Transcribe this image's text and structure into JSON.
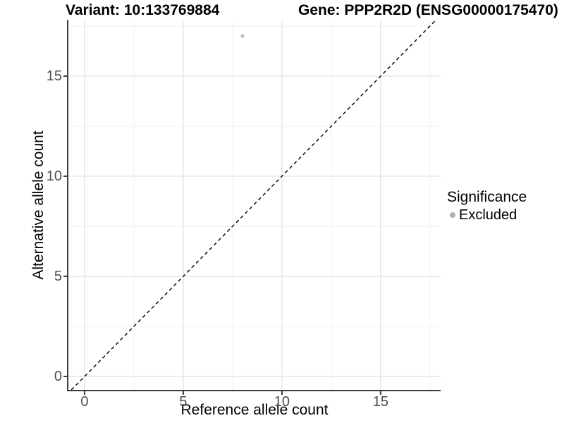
{
  "header": {
    "title_variant": "Variant: 10:133769884",
    "title_gene": "Gene: PPP2R2D (ENSG00000175470)"
  },
  "chart_data": {
    "type": "scatter",
    "title": "Variant: 10:133769884",
    "title_right": "Gene: PPP2R2D (ENSG00000175470)",
    "xlabel": "Reference allele count",
    "ylabel": "Alternative allele count",
    "xlim": [
      -0.82,
      18.04
    ],
    "ylim": [
      -0.67,
      17.78
    ],
    "x_ticks": [
      0,
      5,
      10,
      15
    ],
    "y_ticks": [
      0,
      5,
      10,
      15
    ],
    "minor_tick_interval": 2.5,
    "grid": "major and minor gridlines on white panel",
    "series": [
      {
        "name": "Excluded",
        "marker": "circle",
        "color": "#c0c0c0",
        "points": [
          {
            "x": 8,
            "y": 17
          }
        ]
      }
    ],
    "reference_line": {
      "kind": "identity (y = x)",
      "style": "dashed",
      "color": "#000000"
    },
    "legend": {
      "title": "Significance",
      "position": "right",
      "entries": [
        {
          "label": "Excluded",
          "marker_color": "#b0b0b0"
        }
      ]
    }
  },
  "style_colors": {
    "axis_line": "#3c3c3c",
    "tick_mark": "#3c3c3c",
    "major_grid": "#e4e4e4",
    "minor_grid": "#f1f1f1",
    "tick_label": "#4d4d4d"
  }
}
